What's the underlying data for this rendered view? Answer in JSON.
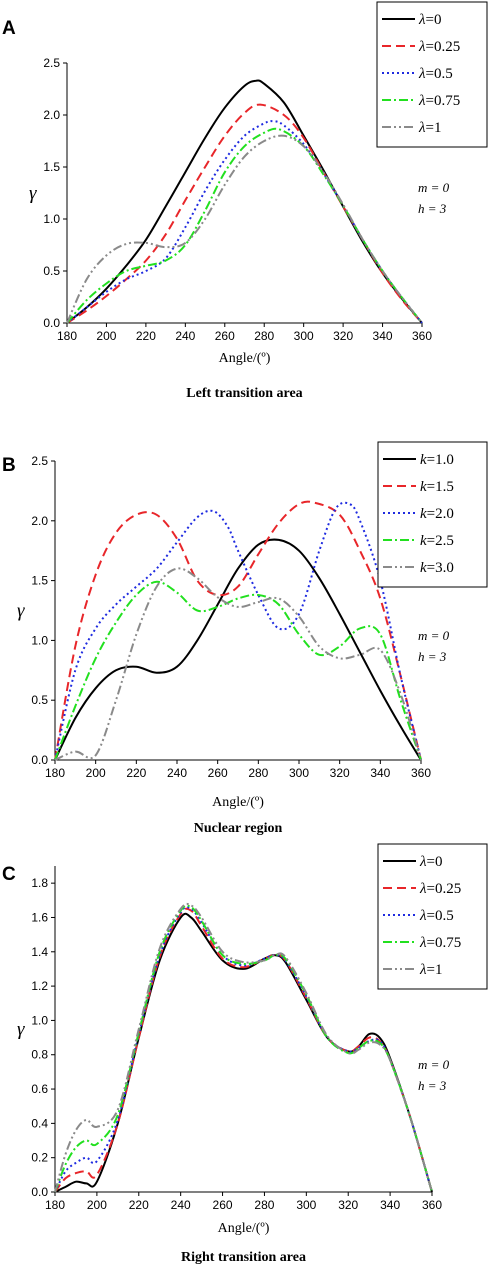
{
  "chart_data": [
    {
      "type": "line",
      "panel": "A",
      "title": "Left transition area",
      "xlabel": "Angle/(º)",
      "ylabel": "γ",
      "xlim": [
        180,
        360
      ],
      "ylim": [
        0,
        2.5
      ],
      "xticks": [
        180,
        200,
        220,
        240,
        260,
        280,
        300,
        320,
        340,
        360
      ],
      "yticks": [
        0.0,
        0.5,
        1.0,
        1.5,
        2.0,
        2.5
      ],
      "legend_position": "top-right",
      "legend_symbol": "λ",
      "annotations": [
        "m = 0",
        "h = 3"
      ],
      "series": [
        {
          "name": "λ=0",
          "color": "#000000",
          "dash": "solid",
          "x": [
            180,
            190,
            200,
            210,
            220,
            230,
            240,
            250,
            260,
            270,
            276,
            280,
            290,
            300,
            310,
            320,
            330,
            340,
            350,
            360
          ],
          "y": [
            0,
            0.15,
            0.33,
            0.55,
            0.8,
            1.12,
            1.45,
            1.78,
            2.07,
            2.28,
            2.33,
            2.3,
            2.12,
            1.8,
            1.47,
            1.12,
            0.78,
            0.48,
            0.23,
            0
          ]
        },
        {
          "name": "λ=0.25",
          "color": "#e8262a",
          "dash": "dashed",
          "x": [
            180,
            190,
            200,
            210,
            220,
            230,
            240,
            250,
            260,
            270,
            278,
            290,
            300,
            310,
            320,
            330,
            340,
            350,
            360
          ],
          "y": [
            0,
            0.12,
            0.26,
            0.42,
            0.6,
            0.85,
            1.18,
            1.5,
            1.8,
            2.02,
            2.1,
            2.0,
            1.78,
            1.45,
            1.12,
            0.8,
            0.48,
            0.22,
            0
          ]
        },
        {
          "name": "λ=0.5",
          "color": "#1f2be0",
          "dash": "dotted",
          "x": [
            180,
            190,
            200,
            210,
            220,
            230,
            240,
            250,
            260,
            270,
            280,
            285,
            290,
            300,
            310,
            320,
            330,
            340,
            350,
            360
          ],
          "y": [
            0,
            0.15,
            0.3,
            0.42,
            0.5,
            0.62,
            0.92,
            1.27,
            1.57,
            1.8,
            1.92,
            1.94,
            1.9,
            1.72,
            1.44,
            1.13,
            0.8,
            0.5,
            0.24,
            0
          ]
        },
        {
          "name": "λ=0.75",
          "color": "#22e01f",
          "dash": "dashdot",
          "x": [
            180,
            190,
            200,
            210,
            220,
            230,
            240,
            250,
            260,
            270,
            280,
            288,
            300,
            310,
            320,
            330,
            340,
            350,
            360
          ],
          "y": [
            0,
            0.22,
            0.38,
            0.5,
            0.55,
            0.6,
            0.75,
            1.08,
            1.45,
            1.7,
            1.83,
            1.86,
            1.7,
            1.43,
            1.13,
            0.8,
            0.5,
            0.24,
            0
          ]
        },
        {
          "name": "λ=1",
          "color": "#8a8a8a",
          "dash": "dashdotdot",
          "x": [
            180,
            190,
            200,
            210,
            220,
            230,
            240,
            250,
            260,
            270,
            280,
            290,
            300,
            310,
            320,
            330,
            340,
            350,
            360
          ],
          "y": [
            0,
            0.42,
            0.65,
            0.76,
            0.77,
            0.73,
            0.77,
            1.0,
            1.33,
            1.6,
            1.75,
            1.8,
            1.7,
            1.45,
            1.14,
            0.8,
            0.5,
            0.24,
            0
          ]
        }
      ]
    },
    {
      "type": "line",
      "panel": "B",
      "title": "Nuclear region",
      "xlabel": "Angle/(º)",
      "ylabel": "γ",
      "xlim": [
        180,
        360
      ],
      "ylim": [
        0,
        2.5
      ],
      "xticks": [
        180,
        200,
        220,
        240,
        260,
        280,
        300,
        320,
        340,
        360
      ],
      "yticks": [
        0.0,
        0.5,
        1.0,
        1.5,
        2.0,
        2.5
      ],
      "legend_position": "top-right",
      "legend_symbol": "k",
      "annotations": [
        "m = 0",
        "h = 3"
      ],
      "series": [
        {
          "name": "k=1.0",
          "color": "#000000",
          "dash": "solid",
          "x": [
            180,
            190,
            200,
            210,
            220,
            230,
            240,
            250,
            260,
            270,
            280,
            290,
            300,
            310,
            320,
            330,
            340,
            350,
            360
          ],
          "y": [
            0,
            0.35,
            0.6,
            0.75,
            0.78,
            0.73,
            0.78,
            1.0,
            1.3,
            1.6,
            1.8,
            1.84,
            1.75,
            1.52,
            1.22,
            0.9,
            0.58,
            0.28,
            0
          ]
        },
        {
          "name": "k=1.5",
          "color": "#e8262a",
          "dash": "dashed",
          "x": [
            180,
            190,
            200,
            210,
            220,
            230,
            240,
            250,
            260,
            270,
            280,
            290,
            300,
            308,
            320,
            330,
            340,
            350,
            360
          ],
          "y": [
            0,
            0.95,
            1.55,
            1.9,
            2.05,
            2.05,
            1.85,
            1.5,
            1.38,
            1.45,
            1.72,
            1.98,
            2.14,
            2.15,
            2.05,
            1.75,
            1.35,
            0.7,
            0
          ]
        },
        {
          "name": "k=2.0",
          "color": "#1f2be0",
          "dash": "dotted",
          "x": [
            180,
            190,
            200,
            210,
            220,
            230,
            240,
            250,
            258,
            265,
            270,
            280,
            290,
            300,
            310,
            318,
            325,
            330,
            340,
            350,
            360
          ],
          "y": [
            0,
            0.75,
            1.1,
            1.3,
            1.45,
            1.6,
            1.82,
            2.03,
            2.08,
            1.95,
            1.75,
            1.38,
            1.1,
            1.22,
            1.75,
            2.1,
            2.14,
            2.0,
            1.5,
            0.7,
            0
          ]
        },
        {
          "name": "k=2.5",
          "color": "#22e01f",
          "dash": "dashdot",
          "x": [
            180,
            190,
            200,
            210,
            220,
            230,
            240,
            250,
            260,
            270,
            280,
            290,
            300,
            310,
            320,
            330,
            340,
            350,
            360
          ],
          "y": [
            0,
            0.45,
            0.85,
            1.15,
            1.38,
            1.49,
            1.4,
            1.25,
            1.28,
            1.35,
            1.38,
            1.3,
            1.05,
            0.88,
            0.95,
            1.1,
            1.05,
            0.5,
            0
          ]
        },
        {
          "name": "k=3.0",
          "color": "#8a8a8a",
          "dash": "dashdotdot",
          "x": [
            180,
            190,
            200,
            210,
            220,
            230,
            240,
            250,
            260,
            270,
            280,
            290,
            300,
            310,
            320,
            330,
            340,
            350,
            360
          ],
          "y": [
            0,
            0.07,
            0.04,
            0.5,
            1.05,
            1.45,
            1.6,
            1.52,
            1.36,
            1.28,
            1.32,
            1.35,
            1.2,
            0.95,
            0.85,
            0.88,
            0.92,
            0.55,
            0
          ]
        }
      ]
    },
    {
      "type": "line",
      "panel": "C",
      "title": "Right transition area",
      "xlabel": "Angle/(º)",
      "ylabel": "γ",
      "xlim": [
        180,
        360
      ],
      "ylim": [
        0,
        1.9
      ],
      "xticks": [
        180,
        200,
        220,
        240,
        260,
        280,
        300,
        320,
        340,
        360
      ],
      "yticks": [
        0.0,
        0.2,
        0.4,
        0.6,
        0.8,
        1.0,
        1.2,
        1.4,
        1.6,
        1.8
      ],
      "legend_position": "top-right",
      "legend_symbol": "λ",
      "annotations": [
        "m = 0",
        "h = 3"
      ],
      "series": [
        {
          "name": "λ=0",
          "color": "#000000",
          "dash": "solid",
          "x": [
            180,
            185,
            190,
            195,
            200,
            210,
            220,
            230,
            240,
            245,
            250,
            260,
            270,
            280,
            285,
            290,
            300,
            310,
            320,
            325,
            330,
            335,
            340,
            350,
            360
          ],
          "y": [
            0,
            0.03,
            0.06,
            0.05,
            0.06,
            0.4,
            0.9,
            1.35,
            1.6,
            1.6,
            1.52,
            1.35,
            1.3,
            1.36,
            1.38,
            1.34,
            1.12,
            0.9,
            0.82,
            0.85,
            0.92,
            0.9,
            0.78,
            0.42,
            0
          ]
        },
        {
          "name": "λ=0.25",
          "color": "#e8262a",
          "dash": "dashed",
          "x": [
            180,
            185,
            190,
            195,
            200,
            210,
            220,
            230,
            240,
            245,
            250,
            260,
            270,
            280,
            285,
            290,
            300,
            310,
            320,
            325,
            330,
            335,
            340,
            350,
            360
          ],
          "y": [
            0,
            0.08,
            0.11,
            0.12,
            0.1,
            0.4,
            0.9,
            1.37,
            1.62,
            1.64,
            1.55,
            1.36,
            1.31,
            1.36,
            1.38,
            1.35,
            1.13,
            0.9,
            0.82,
            0.85,
            0.9,
            0.88,
            0.77,
            0.42,
            0
          ]
        },
        {
          "name": "λ=0.5",
          "color": "#1f2be0",
          "dash": "dotted",
          "x": [
            180,
            185,
            190,
            195,
            200,
            210,
            220,
            230,
            240,
            245,
            250,
            260,
            270,
            280,
            285,
            290,
            300,
            310,
            320,
            325,
            330,
            335,
            340,
            350,
            360
          ],
          "y": [
            0,
            0.12,
            0.17,
            0.2,
            0.18,
            0.42,
            0.92,
            1.38,
            1.63,
            1.65,
            1.57,
            1.38,
            1.32,
            1.36,
            1.38,
            1.35,
            1.14,
            0.9,
            0.82,
            0.84,
            0.88,
            0.88,
            0.77,
            0.42,
            0
          ]
        },
        {
          "name": "λ=0.75",
          "color": "#22e01f",
          "dash": "dashdot",
          "x": [
            180,
            185,
            190,
            195,
            200,
            210,
            220,
            230,
            240,
            245,
            250,
            260,
            270,
            280,
            285,
            290,
            300,
            310,
            320,
            325,
            330,
            335,
            340,
            350,
            360
          ],
          "y": [
            0,
            0.16,
            0.26,
            0.3,
            0.28,
            0.45,
            0.93,
            1.4,
            1.64,
            1.66,
            1.58,
            1.38,
            1.33,
            1.35,
            1.38,
            1.36,
            1.15,
            0.9,
            0.81,
            0.84,
            0.88,
            0.87,
            0.77,
            0.42,
            0
          ]
        },
        {
          "name": "λ=1",
          "color": "#8a8a8a",
          "dash": "dashdotdot",
          "x": [
            180,
            185,
            190,
            195,
            200,
            210,
            220,
            230,
            240,
            245,
            250,
            260,
            270,
            280,
            285,
            290,
            300,
            310,
            320,
            325,
            330,
            335,
            340,
            350,
            360
          ],
          "y": [
            0,
            0.22,
            0.36,
            0.42,
            0.38,
            0.48,
            0.95,
            1.42,
            1.65,
            1.67,
            1.6,
            1.4,
            1.34,
            1.35,
            1.38,
            1.37,
            1.16,
            0.91,
            0.81,
            0.83,
            0.87,
            0.86,
            0.77,
            0.42,
            0
          ]
        }
      ]
    }
  ]
}
